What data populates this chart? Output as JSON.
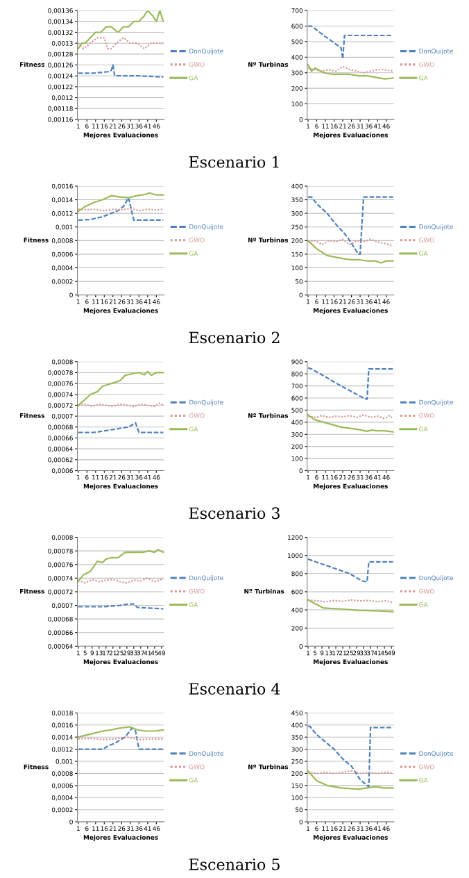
{
  "chart_data": [
    {
      "type": "line",
      "xlabel": "Mejores Evaluaciones",
      "ylabel": "Fitness",
      "annotations": [
        "Escenario 1"
      ],
      "grid": "y",
      "legend": "right",
      "marker": "none",
      "xlim": [
        0.5,
        50.5
      ],
      "xticks": [
        1,
        6,
        11,
        16,
        21,
        26,
        31,
        36,
        41,
        46
      ],
      "ylim": [
        0.00116,
        0.00136
      ],
      "yticks": [
        {
          "value": 0.00116,
          "label": "0,00116"
        },
        {
          "value": 0.00118,
          "label": "0,00118"
        },
        {
          "value": 0.0012,
          "label": "0,0012"
        },
        {
          "value": 0.00122,
          "label": "0,00122"
        },
        {
          "value": 0.00124,
          "label": "0,00124"
        },
        {
          "value": 0.00126,
          "label": "0,00126"
        },
        {
          "value": 0.00128,
          "label": "0,00128"
        },
        {
          "value": 0.0013,
          "label": "0,0013"
        },
        {
          "value": 0.00132,
          "label": "0,00132"
        },
        {
          "value": 0.00134,
          "label": "0,00134"
        },
        {
          "value": 0.00136,
          "label": "0,00136"
        }
      ],
      "series": [
        {
          "name": "DonQuijote",
          "color": "#4f81bd",
          "line_style": "dashed",
          "x": [
            1,
            10,
            19,
            20,
            21,
            22,
            35,
            50
          ],
          "values": [
            0.001245,
            0.001245,
            0.001248,
            0.00125,
            0.00126,
            0.00124,
            0.00124,
            0.001238
          ]
        },
        {
          "name": "GWO",
          "color": "#d99694",
          "line_style": "dotted",
          "x": [
            1,
            4,
            8,
            12,
            16,
            18,
            20,
            23,
            27,
            31,
            35,
            39,
            43,
            47,
            50
          ],
          "values": [
            0.0013,
            0.00129,
            0.0013,
            0.00131,
            0.00131,
            0.00129,
            0.00129,
            0.0013,
            0.00131,
            0.0013,
            0.0013,
            0.00129,
            0.0013,
            0.0013,
            0.0013
          ]
        },
        {
          "name": "GA",
          "color": "#9bbb59",
          "line_style": "solid",
          "x": [
            1,
            3,
            5,
            8,
            11,
            14,
            17,
            20,
            24,
            27,
            30,
            33,
            36,
            39,
            41,
            44,
            46,
            48,
            50
          ],
          "values": [
            0.00129,
            0.0013,
            0.0013,
            0.00131,
            0.00132,
            0.00132,
            0.00133,
            0.00133,
            0.00132,
            0.00133,
            0.00133,
            0.00134,
            0.00134,
            0.00135,
            0.00136,
            0.00135,
            0.00134,
            0.00136,
            0.00134
          ]
        }
      ]
    },
    {
      "type": "line",
      "xlabel": "Mejores Evaluaciones",
      "ylabel": "Nº Turbinas",
      "grid": "y",
      "legend": "right",
      "marker": "none",
      "xlim": [
        0.5,
        50.5
      ],
      "xticks": [
        1,
        6,
        11,
        16,
        21,
        26,
        31,
        36,
        41,
        46
      ],
      "ylim": [
        0,
        700
      ],
      "yticks": [
        0,
        100,
        200,
        300,
        400,
        500,
        600,
        700
      ],
      "series": [
        {
          "name": "DonQuijote",
          "color": "#4f81bd",
          "line_style": "dashed",
          "x": [
            1,
            3,
            10,
            15,
            20,
            21,
            22,
            50
          ],
          "values": [
            600,
            600,
            540,
            500,
            460,
            390,
            540,
            540
          ]
        },
        {
          "name": "GWO",
          "color": "#d99694",
          "line_style": "dotted",
          "x": [
            1,
            5,
            9,
            13,
            17,
            21,
            25,
            29,
            33,
            37,
            41,
            45,
            50
          ],
          "values": [
            330,
            320,
            310,
            320,
            310,
            340,
            320,
            310,
            300,
            310,
            320,
            320,
            310
          ]
        },
        {
          "name": "GA",
          "color": "#9bbb59",
          "line_style": "solid",
          "x": [
            1,
            3,
            5,
            10,
            15,
            20,
            25,
            30,
            35,
            40,
            45,
            50
          ],
          "values": [
            350,
            310,
            330,
            300,
            290,
            290,
            290,
            280,
            280,
            270,
            260,
            265
          ]
        }
      ]
    },
    {
      "type": "line",
      "xlabel": "Mejores Evaluaciones",
      "ylabel": "Fitness",
      "annotations": [
        "Escenario 2"
      ],
      "grid": "y",
      "legend": "right",
      "marker": "none",
      "xlim": [
        0.5,
        50.5
      ],
      "xticks": [
        1,
        6,
        11,
        16,
        21,
        26,
        31,
        36,
        41,
        46
      ],
      "ylim": [
        0,
        0.0016
      ],
      "yticks": [
        {
          "value": 0,
          "label": "0"
        },
        {
          "value": 0.0002,
          "label": "0,0002"
        },
        {
          "value": 0.0004,
          "label": "0,0004"
        },
        {
          "value": 0.0006,
          "label": "0,0006"
        },
        {
          "value": 0.0008,
          "label": "0,0008"
        },
        {
          "value": 0.001,
          "label": "0,001"
        },
        {
          "value": 0.0012,
          "label": "0,0012"
        },
        {
          "value": 0.0014,
          "label": "0,0014"
        },
        {
          "value": 0.0016,
          "label": "0,0016"
        }
      ],
      "series": [
        {
          "name": "DonQuijote",
          "color": "#4f81bd",
          "line_style": "dashed",
          "x": [
            1,
            8,
            15,
            20,
            24,
            27,
            30,
            33,
            50
          ],
          "values": [
            0.0011,
            0.00111,
            0.00115,
            0.0012,
            0.00124,
            0.0013,
            0.00143,
            0.0011,
            0.0011
          ]
        },
        {
          "name": "GWO",
          "color": "#d99694",
          "line_style": "dotted",
          "x": [
            1,
            6,
            11,
            16,
            21,
            26,
            31,
            36,
            41,
            46,
            50
          ],
          "values": [
            0.00126,
            0.00125,
            0.00126,
            0.00124,
            0.00126,
            0.00125,
            0.00127,
            0.00124,
            0.00126,
            0.00125,
            0.00126
          ]
        },
        {
          "name": "GA",
          "color": "#9bbb59",
          "line_style": "solid",
          "x": [
            1,
            5,
            10,
            15,
            20,
            25,
            30,
            35,
            40,
            42,
            46,
            50
          ],
          "values": [
            0.00123,
            0.0013,
            0.00136,
            0.0014,
            0.00146,
            0.00144,
            0.00143,
            0.00146,
            0.00148,
            0.0015,
            0.00147,
            0.00147
          ]
        }
      ]
    },
    {
      "type": "line",
      "xlabel": "Mejores Evaluaciones",
      "ylabel": "Nº Turbinas",
      "grid": "y",
      "legend": "right",
      "marker": "none",
      "xlim": [
        0.5,
        50.5
      ],
      "xticks": [
        1,
        6,
        11,
        16,
        21,
        26,
        31,
        36,
        41,
        46
      ],
      "ylim": [
        0,
        400
      ],
      "yticks": [
        0,
        50,
        100,
        150,
        200,
        250,
        300,
        350,
        400
      ],
      "series": [
        {
          "name": "DonQuijote",
          "color": "#4f81bd",
          "line_style": "dashed",
          "x": [
            1,
            3,
            6,
            12,
            17,
            20,
            24,
            28,
            30,
            31,
            33,
            50
          ],
          "values": [
            360,
            360,
            335,
            300,
            260,
            240,
            210,
            170,
            150,
            150,
            360,
            360
          ]
        },
        {
          "name": "GWO",
          "color": "#d99694",
          "line_style": "dotted",
          "x": [
            1,
            5,
            9,
            13,
            17,
            21,
            25,
            29,
            33,
            37,
            41,
            45,
            50
          ],
          "values": [
            195,
            200,
            185,
            200,
            195,
            205,
            185,
            200,
            195,
            205,
            195,
            190,
            180
          ]
        },
        {
          "name": "GA",
          "color": "#9bbb59",
          "line_style": "solid",
          "x": [
            1,
            6,
            12,
            20,
            25,
            30,
            35,
            40,
            43,
            46,
            50
          ],
          "values": [
            200,
            170,
            145,
            135,
            130,
            130,
            125,
            125,
            118,
            125,
            125
          ]
        }
      ]
    },
    {
      "type": "line",
      "xlabel": "Mejores Evaluaciones",
      "ylabel": "Fitness",
      "annotations": [
        "Escenario 3"
      ],
      "grid": "y",
      "legend": "right",
      "marker": "none",
      "xlim": [
        0.5,
        50.5
      ],
      "xticks": [
        1,
        6,
        11,
        16,
        21,
        26,
        31,
        36,
        41,
        46
      ],
      "ylim": [
        0.0006,
        0.0008
      ],
      "yticks": [
        {
          "value": 0.0006,
          "label": "0,0006"
        },
        {
          "value": 0.00062,
          "label": "0,00062"
        },
        {
          "value": 0.00064,
          "label": "0,00064"
        },
        {
          "value": 0.00066,
          "label": "0,00066"
        },
        {
          "value": 0.00068,
          "label": "0,00068"
        },
        {
          "value": 0.0007,
          "label": "0,0007"
        },
        {
          "value": 0.00072,
          "label": "0,00072"
        },
        {
          "value": 0.00074,
          "label": "0,00074"
        },
        {
          "value": 0.00076,
          "label": "0,00076"
        },
        {
          "value": 0.00078,
          "label": "0,00078"
        },
        {
          "value": 0.0008,
          "label": "0,0008"
        }
      ],
      "series": [
        {
          "name": "DonQuijote",
          "color": "#4f81bd",
          "line_style": "dashed",
          "x": [
            1,
            10,
            20,
            30,
            34,
            36,
            50
          ],
          "values": [
            0.00067,
            0.00067,
            0.000675,
            0.00068,
            0.000688,
            0.00067,
            0.00067
          ]
        },
        {
          "name": "GWO",
          "color": "#d99694",
          "line_style": "dotted",
          "x": [
            1,
            5,
            9,
            13,
            17,
            21,
            25,
            29,
            33,
            37,
            41,
            45,
            48,
            50
          ],
          "values": [
            0.00072,
            0.000722,
            0.000718,
            0.000722,
            0.00072,
            0.000718,
            0.000722,
            0.00072,
            0.000718,
            0.000722,
            0.00072,
            0.000718,
            0.000724,
            0.00072
          ]
        },
        {
          "name": "GA",
          "color": "#9bbb59",
          "line_style": "solid",
          "x": [
            1,
            4,
            8,
            12,
            15,
            20,
            25,
            28,
            32,
            36,
            39,
            41,
            43,
            46,
            50
          ],
          "values": [
            0.00072,
            0.000728,
            0.00074,
            0.000745,
            0.000755,
            0.00076,
            0.000765,
            0.000775,
            0.000778,
            0.00078,
            0.000776,
            0.000782,
            0.000775,
            0.00078,
            0.00078
          ]
        }
      ]
    },
    {
      "type": "line",
      "xlabel": "Mejores Evaluaciones",
      "ylabel": "Nº Turbinas",
      "grid": "y",
      "legend": "right",
      "marker": "none",
      "xlim": [
        0.5,
        50.5
      ],
      "xticks": [
        1,
        6,
        11,
        16,
        21,
        26,
        31,
        36,
        41,
        46
      ],
      "ylim": [
        0,
        900
      ],
      "yticks": [
        0,
        100,
        200,
        300,
        400,
        500,
        600,
        700,
        800,
        900
      ],
      "series": [
        {
          "name": "DonQuijote",
          "color": "#4f81bd",
          "line_style": "dashed",
          "x": [
            1,
            3,
            8,
            20,
            33,
            35,
            36,
            50
          ],
          "values": [
            850,
            840,
            800,
            700,
            600,
            590,
            840,
            840
          ]
        },
        {
          "name": "GWO",
          "color": "#d99694",
          "line_style": "dotted",
          "x": [
            1,
            5,
            9,
            13,
            17,
            21,
            25,
            29,
            33,
            37,
            41,
            45,
            48,
            50
          ],
          "values": [
            450,
            440,
            455,
            440,
            450,
            445,
            455,
            440,
            460,
            440,
            450,
            430,
            455,
            430
          ]
        },
        {
          "name": "GA",
          "color": "#9bbb59",
          "line_style": "solid",
          "x": [
            1,
            5,
            10,
            15,
            20,
            25,
            30,
            35,
            38,
            40,
            45,
            50
          ],
          "values": [
            460,
            420,
            400,
            380,
            360,
            350,
            340,
            325,
            335,
            330,
            330,
            320
          ]
        }
      ]
    },
    {
      "type": "line",
      "xlabel": "Mejores Evaluaciones",
      "ylabel": "Fitness",
      "annotations": [
        "Escenario 4"
      ],
      "grid": "y",
      "legend": "right",
      "marker": "none",
      "xlim": [
        0.5,
        50.5
      ],
      "xticks": [
        1,
        5,
        9,
        13,
        17,
        21,
        25,
        29,
        33,
        37,
        41,
        45,
        49
      ],
      "ylim": [
        0.00064,
        0.0008
      ],
      "yticks": [
        {
          "value": 0.00064,
          "label": "0,00064"
        },
        {
          "value": 0.00066,
          "label": "0,00066"
        },
        {
          "value": 0.00068,
          "label": "0,00068"
        },
        {
          "value": 0.0007,
          "label": "0,0007"
        },
        {
          "value": 0.00072,
          "label": "0,00072"
        },
        {
          "value": 0.00074,
          "label": "0,00074"
        },
        {
          "value": 0.00076,
          "label": "0,00076"
        },
        {
          "value": 0.00078,
          "label": "0,00078"
        },
        {
          "value": 0.0008,
          "label": "0,0008"
        }
      ],
      "series": [
        {
          "name": "DonQuijote",
          "color": "#4f81bd",
          "line_style": "dashed",
          "x": [
            1,
            15,
            25,
            30,
            33,
            35,
            50
          ],
          "values": [
            0.000698,
            0.000698,
            0.0007,
            0.000702,
            0.000702,
            0.000697,
            0.000695
          ]
        },
        {
          "name": "GWO",
          "color": "#d99694",
          "line_style": "dotted",
          "x": [
            1,
            5,
            9,
            13,
            17,
            21,
            25,
            29,
            33,
            37,
            41,
            45,
            48,
            50
          ],
          "values": [
            0.000737,
            0.000733,
            0.000738,
            0.000735,
            0.000737,
            0.000738,
            0.000735,
            0.000733,
            0.000737,
            0.000736,
            0.00074,
            0.000735,
            0.000737,
            0.00074
          ]
        },
        {
          "name": "GA",
          "color": "#9bbb59",
          "line_style": "solid",
          "x": [
            1,
            4,
            8,
            12,
            15,
            17,
            20,
            24,
            28,
            33,
            38,
            42,
            45,
            47,
            50
          ],
          "values": [
            0.000735,
            0.000745,
            0.00075,
            0.000765,
            0.000763,
            0.000768,
            0.00077,
            0.00077,
            0.000778,
            0.000778,
            0.000778,
            0.00078,
            0.000778,
            0.000782,
            0.000778
          ]
        }
      ]
    },
    {
      "type": "line",
      "xlabel": "Mejores Evaluaciones",
      "ylabel": "Nº Turbinas",
      "grid": "y",
      "legend": "right",
      "marker": "none",
      "xlim": [
        0.5,
        50.5
      ],
      "xticks": [
        1,
        5,
        9,
        13,
        17,
        21,
        25,
        29,
        33,
        37,
        41,
        45,
        49
      ],
      "ylim": [
        0,
        1200
      ],
      "yticks": [
        0,
        200,
        400,
        600,
        800,
        1000,
        1200
      ],
      "series": [
        {
          "name": "DonQuijote",
          "color": "#4f81bd",
          "line_style": "dashed",
          "x": [
            1,
            10,
            25,
            32,
            35,
            36,
            50
          ],
          "values": [
            960,
            900,
            800,
            720,
            710,
            930,
            930
          ]
        },
        {
          "name": "GWO",
          "color": "#d99694",
          "line_style": "dotted",
          "x": [
            1,
            6,
            11,
            16,
            21,
            26,
            31,
            36,
            41,
            46,
            50
          ],
          "values": [
            510,
            500,
            490,
            505,
            495,
            510,
            500,
            505,
            490,
            500,
            480
          ]
        },
        {
          "name": "GA",
          "color": "#9bbb59",
          "line_style": "solid",
          "x": [
            1,
            5,
            10,
            20,
            30,
            40,
            50
          ],
          "values": [
            510,
            470,
            420,
            410,
            395,
            390,
            380
          ]
        }
      ]
    },
    {
      "type": "line",
      "xlabel": "Mejores Evaluaciones",
      "ylabel": "Fitness",
      "annotations": [
        "Escenario 5"
      ],
      "grid": "y",
      "legend": "right",
      "marker": "none",
      "xlim": [
        0.5,
        50.5
      ],
      "xticks": [
        1,
        6,
        11,
        16,
        21,
        26,
        31,
        36,
        41,
        46
      ],
      "ylim": [
        0,
        0.0018
      ],
      "yticks": [
        {
          "value": 0,
          "label": "0"
        },
        {
          "value": 0.0002,
          "label": "0,0002"
        },
        {
          "value": 0.0004,
          "label": "0,0004"
        },
        {
          "value": 0.0006,
          "label": "0,0006"
        },
        {
          "value": 0.0008,
          "label": "0,0008"
        },
        {
          "value": 0.001,
          "label": "0,001"
        },
        {
          "value": 0.0012,
          "label": "0,0012"
        },
        {
          "value": 0.0014,
          "label": "0,0014"
        },
        {
          "value": 0.0016,
          "label": "0,0016"
        },
        {
          "value": 0.0018,
          "label": "0,0018"
        }
      ],
      "series": [
        {
          "name": "DonQuijote",
          "color": "#4f81bd",
          "line_style": "dashed",
          "x": [
            1,
            15,
            18,
            22,
            25,
            28,
            32,
            34,
            36,
            50
          ],
          "values": [
            0.0012,
            0.0012,
            0.00125,
            0.0013,
            0.00135,
            0.0014,
            0.00155,
            0.0015,
            0.0012,
            0.0012
          ]
        },
        {
          "name": "GWO",
          "color": "#d99694",
          "line_style": "dotted",
          "x": [
            1,
            8,
            15,
            22,
            29,
            36,
            43,
            50
          ],
          "values": [
            0.00137,
            0.00138,
            0.00136,
            0.00137,
            0.0014,
            0.00136,
            0.00137,
            0.00137
          ]
        },
        {
          "name": "GA",
          "color": "#9bbb59",
          "line_style": "solid",
          "x": [
            1,
            8,
            15,
            20,
            25,
            31,
            35,
            40,
            45,
            50
          ],
          "values": [
            0.0014,
            0.00145,
            0.0015,
            0.00152,
            0.00155,
            0.00157,
            0.00152,
            0.0015,
            0.0015,
            0.00152
          ]
        }
      ]
    },
    {
      "type": "line",
      "xlabel": "Mejores Evaluaciones",
      "ylabel": "Nº Turbinas",
      "grid": "y",
      "legend": "right",
      "marker": "none",
      "xlim": [
        0.5,
        50.5
      ],
      "xticks": [
        1,
        6,
        11,
        16,
        21,
        26,
        31,
        36,
        41,
        46
      ],
      "ylim": [
        0,
        450
      ],
      "yticks": [
        0,
        50,
        100,
        150,
        200,
        250,
        300,
        350,
        400,
        450
      ],
      "series": [
        {
          "name": "DonQuijote",
          "color": "#4f81bd",
          "line_style": "dashed",
          "x": [
            1,
            2,
            6,
            11,
            16,
            21,
            26,
            31,
            35,
            36,
            37,
            50
          ],
          "values": [
            395,
            395,
            360,
            330,
            300,
            260,
            230,
            175,
            150,
            145,
            390,
            390
          ]
        },
        {
          "name": "GWO",
          "color": "#d99694",
          "line_style": "dotted",
          "x": [
            1,
            6,
            11,
            16,
            21,
            26,
            31,
            36,
            41,
            46,
            50
          ],
          "values": [
            205,
            200,
            205,
            200,
            205,
            210,
            200,
            205,
            200,
            205,
            200
          ]
        },
        {
          "name": "GA",
          "color": "#9bbb59",
          "line_style": "solid",
          "x": [
            1,
            6,
            12,
            20,
            30,
            35,
            40,
            45,
            50
          ],
          "values": [
            210,
            170,
            150,
            140,
            135,
            140,
            145,
            140,
            140
          ]
        }
      ]
    }
  ]
}
